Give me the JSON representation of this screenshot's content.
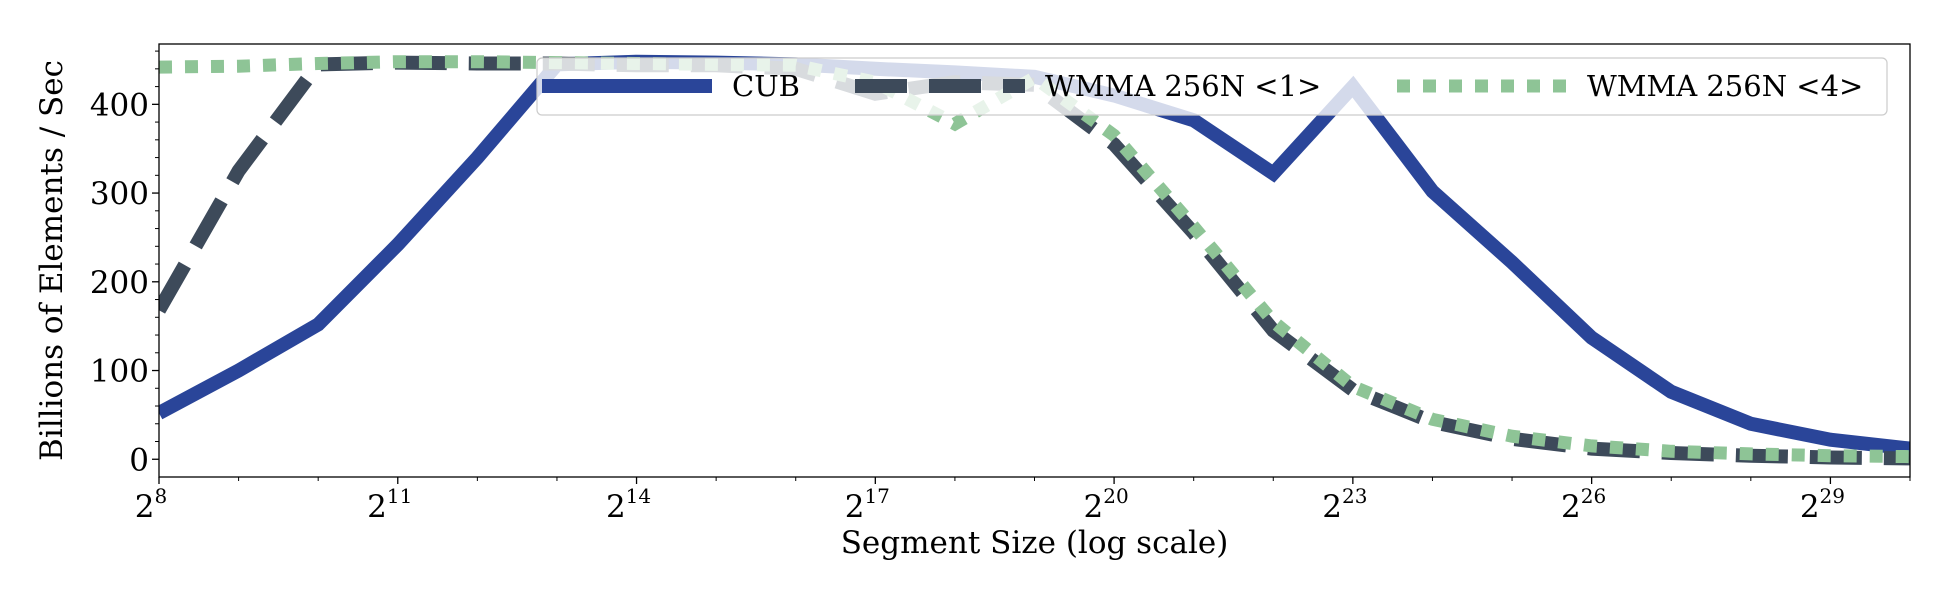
{
  "chart_data": {
    "type": "line",
    "title": "",
    "xlabel": "Segment Size (log scale)",
    "ylabel": "Billions of Elements / Sec",
    "x_scale": "log2",
    "xlim": [
      8,
      30
    ],
    "ylim": [
      -20,
      468
    ],
    "x_ticks": [
      {
        "base": "2",
        "exp": "8",
        "value": 8
      },
      {
        "base": "2",
        "exp": "11",
        "value": 11
      },
      {
        "base": "2",
        "exp": "14",
        "value": 14
      },
      {
        "base": "2",
        "exp": "17",
        "value": 17
      },
      {
        "base": "2",
        "exp": "20",
        "value": 20
      },
      {
        "base": "2",
        "exp": "23",
        "value": 23
      },
      {
        "base": "2",
        "exp": "26",
        "value": 26
      },
      {
        "base": "2",
        "exp": "29",
        "value": 29
      }
    ],
    "y_ticks": [
      {
        "label": "0",
        "value": 0
      },
      {
        "label": "100",
        "value": 100
      },
      {
        "label": "200",
        "value": 200
      },
      {
        "label": "300",
        "value": 300
      },
      {
        "label": "400",
        "value": 400
      }
    ],
    "grid": false,
    "legend_position": "top-right",
    "x": [
      8,
      9,
      10,
      11,
      12,
      13,
      14,
      15,
      16,
      17,
      18,
      19,
      20,
      21,
      22,
      23,
      24,
      25,
      26,
      27,
      28,
      29,
      30
    ],
    "series": [
      {
        "name": "CUB",
        "color": "#2a4599",
        "style": "solid",
        "values": [
          52,
          100,
          152,
          242,
          340,
          445,
          448,
          447,
          445,
          440,
          436,
          431,
          410,
          382,
          322,
          420,
          302,
          222,
          137,
          76,
          40,
          22,
          12
        ]
      },
      {
        "name": "WMMA 256N <1>",
        "color": "#3d4a5a",
        "style": "dashed",
        "values": [
          168,
          325,
          445,
          447,
          446,
          446,
          444,
          444,
          440,
          412,
          425,
          422,
          355,
          255,
          145,
          78,
          42,
          23,
          12,
          7,
          4,
          2,
          1
        ]
      },
      {
        "name": "WMMA 256N <4>",
        "color": "#8ec496",
        "style": "dotted",
        "values": [
          442,
          443,
          446,
          448,
          448,
          447,
          446,
          445,
          444,
          425,
          378,
          430,
          365,
          262,
          155,
          82,
          45,
          26,
          15,
          9,
          6,
          4,
          3
        ]
      }
    ]
  }
}
